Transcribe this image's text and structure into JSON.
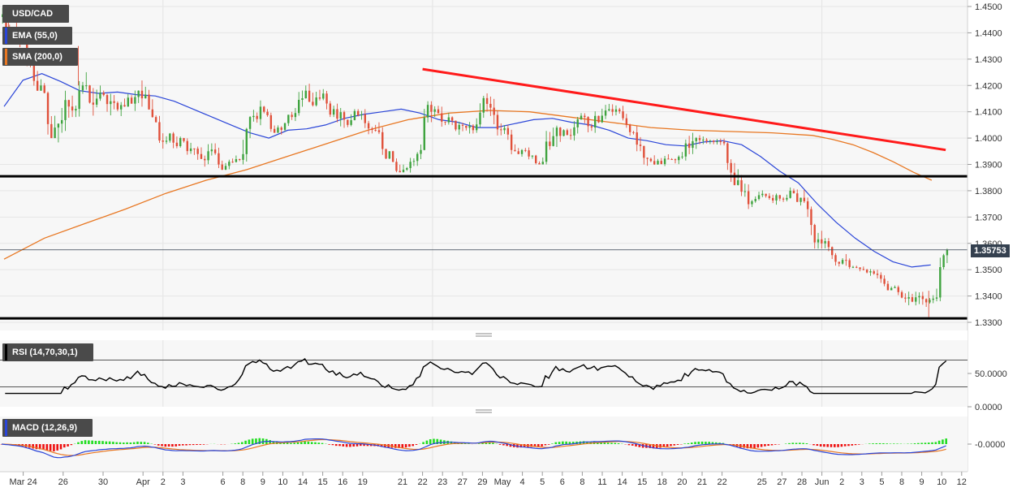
{
  "instrument": "USD/CAD",
  "current_price": "1.35753",
  "colors": {
    "bull": "#3fa33f",
    "bear": "#e0503a",
    "ema": "#2a45d8",
    "sma": "#e87722",
    "trend": "#ff1a1a",
    "level": "#000000",
    "macd": "#2a45d8",
    "signal": "#e87722",
    "hist_pos": "#22dd22",
    "hist_neg": "#ee1111",
    "rsi": "#000000"
  },
  "indicators": {
    "ema": {
      "label": "EMA (55,0)",
      "color": "#2a45d8"
    },
    "sma": {
      "label": "SMA (200,0)",
      "color": "#e87722"
    },
    "rsi": {
      "label": "RSI (14,70,30,1)",
      "color": "#000000"
    },
    "macd": {
      "label": "MACD (12,26,9)",
      "color": "#2a45d8"
    }
  },
  "chart_data": {
    "type": "candlestick",
    "x_tick_labels": [
      "Mar 24",
      "26",
      "30",
      "Apr",
      "2",
      "3",
      "6",
      "8",
      "9",
      "10",
      "14",
      "15",
      "16",
      "19",
      "21",
      "22",
      "23",
      "27",
      "29",
      "May",
      "4",
      "5",
      "6",
      "8",
      "11",
      "14",
      "15",
      "18",
      "20",
      "21",
      "22",
      "25",
      "27",
      "28",
      "Jun",
      "2",
      "3",
      "5",
      "8",
      "9",
      "10",
      "12"
    ],
    "y_tick_labels": [
      "1.4500",
      "1.4400",
      "1.4300",
      "1.4200",
      "1.4100",
      "1.4000",
      "1.3900",
      "1.3800",
      "1.3700",
      "1.3600",
      "1.3500",
      "1.3400",
      "1.3300"
    ],
    "ylim": [
      1.328,
      1.451
    ],
    "last_price": 1.35753,
    "horizontal_levels": [
      1.3855,
      1.3315
    ],
    "trendline": [
      [
        21,
        1.4262
      ],
      [
        47,
        1.3955
      ]
    ],
    "x_ticks": [
      1,
      3,
      5,
      7,
      8,
      9,
      11,
      12,
      13,
      14,
      15,
      16,
      17,
      18,
      20,
      21,
      22,
      23,
      24,
      25,
      26,
      27,
      28,
      29,
      30,
      31,
      32,
      33,
      34,
      35,
      36,
      38,
      39,
      40,
      41,
      42,
      43,
      44,
      45,
      46,
      47,
      48
    ],
    "days": [
      {
        "x": 0.5,
        "o": 1.446,
        "h": 1.45,
        "l": 1.438,
        "c": 1.442
      },
      {
        "x": 1.5,
        "o": 1.442,
        "h": 1.448,
        "l": 1.426,
        "c": 1.43
      },
      {
        "x": 2.5,
        "o": 1.43,
        "h": 1.434,
        "l": 1.418,
        "c": 1.42
      },
      {
        "x": 3.5,
        "o": 1.42,
        "h": 1.422,
        "l": 1.4,
        "c": 1.404
      },
      {
        "x": 4.5,
        "o": 1.404,
        "h": 1.418,
        "l": 1.393,
        "c": 1.412
      },
      {
        "x": 5.5,
        "o": 1.412,
        "h": 1.428,
        "l": 1.408,
        "c": 1.42
      },
      {
        "x": 6.5,
        "o": 1.42,
        "h": 1.43,
        "l": 1.405,
        "c": 1.415
      },
      {
        "x": 7.5,
        "o": 1.415,
        "h": 1.428,
        "l": 1.407,
        "c": 1.414
      },
      {
        "x": 8.5,
        "o": 1.414,
        "h": 1.42,
        "l": 1.408,
        "c": 1.412
      },
      {
        "x": 9.5,
        "o": 1.412,
        "h": 1.425,
        "l": 1.41,
        "c": 1.418
      },
      {
        "x": 10.5,
        "o": 1.418,
        "h": 1.426,
        "l": 1.405,
        "c": 1.408
      },
      {
        "x": 11.5,
        "o": 1.408,
        "h": 1.41,
        "l": 1.396,
        "c": 1.399
      },
      {
        "x": 12.5,
        "o": 1.399,
        "h": 1.406,
        "l": 1.394,
        "c": 1.4
      },
      {
        "x": 13.5,
        "o": 1.4,
        "h": 1.405,
        "l": 1.393,
        "c": 1.396
      },
      {
        "x": 14.5,
        "o": 1.396,
        "h": 1.399,
        "l": 1.388,
        "c": 1.395
      },
      {
        "x": 15.5,
        "o": 1.395,
        "h": 1.398,
        "l": 1.386,
        "c": 1.388
      },
      {
        "x": 16.5,
        "o": 1.388,
        "h": 1.396,
        "l": 1.386,
        "c": 1.392
      },
      {
        "x": 17.5,
        "o": 1.392,
        "h": 1.414,
        "l": 1.39,
        "c": 1.408
      },
      {
        "x": 18.5,
        "o": 1.408,
        "h": 1.415,
        "l": 1.403,
        "c": 1.41
      },
      {
        "x": 19.5,
        "o": 1.41,
        "h": 1.414,
        "l": 1.402,
        "c": 1.404
      },
      {
        "x": 20.5,
        "o": 1.404,
        "h": 1.413,
        "l": 1.401,
        "c": 1.408
      },
      {
        "x": 21.5,
        "o": 1.408,
        "h": 1.42,
        "l": 1.404,
        "c": 1.418
      },
      {
        "x": 22.5,
        "o": 1.418,
        "h": 1.426,
        "l": 1.412,
        "c": 1.415
      },
      {
        "x": 23.5,
        "o": 1.415,
        "h": 1.42,
        "l": 1.408,
        "c": 1.411
      },
      {
        "x": 24.5,
        "o": 1.411,
        "h": 1.416,
        "l": 1.4,
        "c": 1.405
      },
      {
        "x": 25.5,
        "o": 1.405,
        "h": 1.411,
        "l": 1.401,
        "c": 1.409
      },
      {
        "x": 26.5,
        "o": 1.409,
        "h": 1.411,
        "l": 1.4,
        "c": 1.403
      },
      {
        "x": 27.5,
        "o": 1.403,
        "h": 1.406,
        "l": 1.392,
        "c": 1.395
      },
      {
        "x": 28.5,
        "o": 1.395,
        "h": 1.398,
        "l": 1.387,
        "c": 1.388
      },
      {
        "x": 29.5,
        "o": 1.388,
        "h": 1.396,
        "l": 1.386,
        "c": 1.394
      },
      {
        "x": 30.5,
        "o": 1.394,
        "h": 1.414,
        "l": 1.392,
        "c": 1.41
      },
      {
        "x": 31.5,
        "o": 1.41,
        "h": 1.415,
        "l": 1.404,
        "c": 1.406
      },
      {
        "x": 32.5,
        "o": 1.406,
        "h": 1.41,
        "l": 1.401,
        "c": 1.405
      },
      {
        "x": 33.5,
        "o": 1.405,
        "h": 1.41,
        "l": 1.401,
        "c": 1.403
      },
      {
        "x": 34.5,
        "o": 1.403,
        "h": 1.417,
        "l": 1.402,
        "c": 1.413
      },
      {
        "x": 35.5,
        "o": 1.413,
        "h": 1.417,
        "l": 1.401,
        "c": 1.403
      },
      {
        "x": 36.5,
        "o": 1.403,
        "h": 1.405,
        "l": 1.393,
        "c": 1.395
      },
      {
        "x": 37.5,
        "o": 1.395,
        "h": 1.399,
        "l": 1.39,
        "c": 1.393
      },
      {
        "x": 38.5,
        "o": 1.393,
        "h": 1.397,
        "l": 1.39,
        "c": 1.391
      },
      {
        "x": 39.5,
        "o": 1.391,
        "h": 1.408,
        "l": 1.39,
        "c": 1.404
      },
      {
        "x": 40.5,
        "o": 1.404,
        "h": 1.408,
        "l": 1.398,
        "c": 1.401
      },
      {
        "x": 41.5,
        "o": 1.401,
        "h": 1.411,
        "l": 1.399,
        "c": 1.408
      },
      {
        "x": 42.5,
        "o": 1.408,
        "h": 1.414,
        "l": 1.402,
        "c": 1.406
      },
      {
        "x": 43.5,
        "o": 1.406,
        "h": 1.413,
        "l": 1.402,
        "c": 1.41
      },
      {
        "x": 44.5,
        "o": 1.41,
        "h": 1.413,
        "l": 1.403,
        "c": 1.405
      },
      {
        "x": 45.5,
        "o": 1.405,
        "h": 1.407,
        "l": 1.395,
        "c": 1.397
      },
      {
        "x": 46.5,
        "o": 1.397,
        "h": 1.399,
        "l": 1.388,
        "c": 1.39
      },
      {
        "x": 47.5,
        "o": 1.39,
        "h": 1.394,
        "l": 1.386,
        "c": 1.392
      },
      {
        "x": 48.5,
        "o": 1.392,
        "h": 1.395,
        "l": 1.388,
        "c": 1.393
      },
      {
        "x": 49.5,
        "o": 1.393,
        "h": 1.404,
        "l": 1.391,
        "c": 1.4
      },
      {
        "x": 50.5,
        "o": 1.4,
        "h": 1.404,
        "l": 1.397,
        "c": 1.399
      },
      {
        "x": 51.5,
        "o": 1.399,
        "h": 1.401,
        "l": 1.396,
        "c": 1.398
      },
      {
        "x": 52.5,
        "o": 1.398,
        "h": 1.399,
        "l": 1.382,
        "c": 1.384
      },
      {
        "x": 53.5,
        "o": 1.384,
        "h": 1.386,
        "l": 1.373,
        "c": 1.376
      },
      {
        "x": 54.5,
        "o": 1.376,
        "h": 1.381,
        "l": 1.374,
        "c": 1.378
      },
      {
        "x": 55.5,
        "o": 1.378,
        "h": 1.381,
        "l": 1.374,
        "c": 1.377
      },
      {
        "x": 56.5,
        "o": 1.377,
        "h": 1.382,
        "l": 1.375,
        "c": 1.379
      },
      {
        "x": 57.5,
        "o": 1.379,
        "h": 1.383,
        "l": 1.37,
        "c": 1.373
      },
      {
        "x": 58.5,
        "o": 1.373,
        "h": 1.374,
        "l": 1.358,
        "c": 1.36
      },
      {
        "x": 59.5,
        "o": 1.36,
        "h": 1.362,
        "l": 1.35,
        "c": 1.353
      },
      {
        "x": 60.5,
        "o": 1.353,
        "h": 1.357,
        "l": 1.348,
        "c": 1.351
      },
      {
        "x": 61.5,
        "o": 1.351,
        "h": 1.354,
        "l": 1.349,
        "c": 1.35
      },
      {
        "x": 62.5,
        "o": 1.35,
        "h": 1.352,
        "l": 1.346,
        "c": 1.348
      },
      {
        "x": 63.5,
        "o": 1.348,
        "h": 1.349,
        "l": 1.342,
        "c": 1.343
      },
      {
        "x": 64.5,
        "o": 1.343,
        "h": 1.344,
        "l": 1.337,
        "c": 1.339
      },
      {
        "x": 65.5,
        "o": 1.339,
        "h": 1.348,
        "l": 1.336,
        "c": 1.34
      },
      {
        "x": 66.5,
        "o": 1.34,
        "h": 1.342,
        "l": 1.332,
        "c": 1.339
      },
      {
        "x": 67.5,
        "o": 1.339,
        "h": 1.358,
        "l": 1.338,
        "c": 1.3575
      }
    ],
    "ema55": [
      [
        0,
        1.412
      ],
      [
        1,
        1.422
      ],
      [
        2,
        1.4245
      ],
      [
        3,
        1.4215
      ],
      [
        4,
        1.418
      ],
      [
        5,
        1.417
      ],
      [
        6,
        1.4175
      ],
      [
        7,
        1.4165
      ],
      [
        8,
        1.416
      ],
      [
        9,
        1.414
      ],
      [
        10,
        1.411
      ],
      [
        11,
        1.408
      ],
      [
        12,
        1.405
      ],
      [
        13,
        1.402
      ],
      [
        14,
        1.4
      ],
      [
        15,
        1.403
      ],
      [
        16,
        1.4035
      ],
      [
        17,
        1.405
      ],
      [
        18,
        1.4075
      ],
      [
        19,
        1.409
      ],
      [
        20,
        1.41
      ],
      [
        21,
        1.411
      ],
      [
        22,
        1.4095
      ],
      [
        23,
        1.407
      ],
      [
        24,
        1.406
      ],
      [
        25,
        1.404
      ],
      [
        26,
        1.404
      ],
      [
        27,
        1.4055
      ],
      [
        28,
        1.407
      ],
      [
        29,
        1.4075
      ],
      [
        30,
        1.406
      ],
      [
        31,
        1.405
      ],
      [
        32,
        1.403
      ],
      [
        33,
        1.4
      ],
      [
        34,
        1.399
      ],
      [
        35,
        1.3975
      ],
      [
        36,
        1.397
      ],
      [
        37,
        1.3985
      ],
      [
        38,
        1.399
      ],
      [
        39,
        1.3975
      ],
      [
        40,
        1.393
      ],
      [
        41,
        1.3875
      ],
      [
        42,
        1.383
      ],
      [
        43,
        1.375
      ],
      [
        44,
        1.368
      ],
      [
        45,
        1.362
      ],
      [
        46,
        1.357
      ],
      [
        47,
        1.353
      ],
      [
        48,
        1.351
      ],
      [
        49,
        1.3518
      ]
    ],
    "sma200": [
      [
        0,
        1.354
      ],
      [
        2,
        1.362
      ],
      [
        4,
        1.3675
      ],
      [
        6,
        1.373
      ],
      [
        8,
        1.379
      ],
      [
        10,
        1.384
      ],
      [
        12,
        1.388
      ],
      [
        14,
        1.393
      ],
      [
        16,
        1.398
      ],
      [
        18,
        1.403
      ],
      [
        20,
        1.407
      ],
      [
        22,
        1.4095
      ],
      [
        24,
        1.4105
      ],
      [
        26,
        1.41
      ],
      [
        28,
        1.408
      ],
      [
        30,
        1.406
      ],
      [
        32,
        1.404
      ],
      [
        34,
        1.403
      ],
      [
        36,
        1.4025
      ],
      [
        38,
        1.402
      ],
      [
        40,
        1.401
      ],
      [
        41,
        1.3995
      ],
      [
        42,
        1.3975
      ],
      [
        43,
        1.3945
      ],
      [
        44,
        1.391
      ],
      [
        45,
        1.387
      ],
      [
        45.9,
        1.384
      ]
    ]
  },
  "rsi_axis": [
    "50.0000",
    "0.0000"
  ],
  "macd_axis": [
    "-0.0000"
  ]
}
